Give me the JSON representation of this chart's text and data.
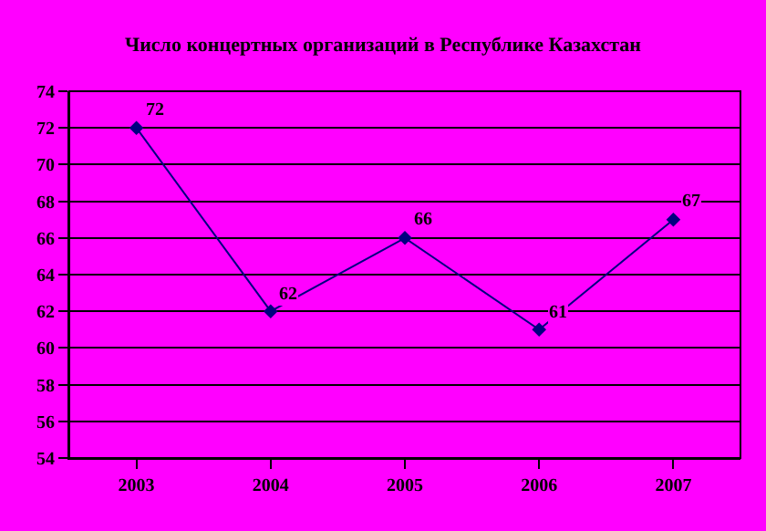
{
  "chart_data": {
    "type": "line",
    "title": "Число концертных организаций в Республике Казахстан",
    "categories": [
      "2003",
      "2004",
      "2005",
      "2006",
      "2007"
    ],
    "series": [
      {
        "color": "#000080",
        "values": [
          72,
          62,
          66,
          61,
          67
        ]
      }
    ],
    "ylim": [
      54,
      74
    ],
    "yticks": [
      54,
      56,
      58,
      60,
      62,
      64,
      66,
      68,
      70,
      72,
      74
    ],
    "grid": "y",
    "legend": false,
    "marker": "diamond",
    "line_style": "solid",
    "data_labels": true
  }
}
